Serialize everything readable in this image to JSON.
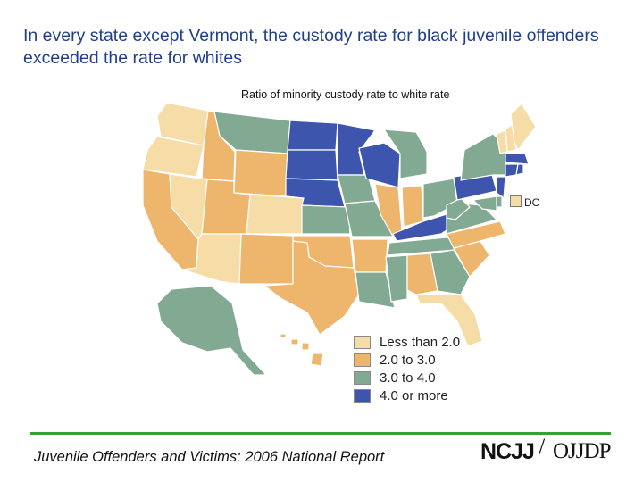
{
  "header": {
    "title": "In every state except Vermont, the custody rate for black juvenile offenders exceeded the rate for whites",
    "subtitle": "Ratio of minority custody rate to white rate"
  },
  "legend": {
    "items": [
      {
        "label": "Less than 2.0",
        "color": "#f6dca6"
      },
      {
        "label": "2.0 to 3.0",
        "color": "#eeb56c"
      },
      {
        "label": "3.0 to 4.0",
        "color": "#82a992"
      },
      {
        "label": "4.0 or more",
        "color": "#3e55ad"
      }
    ]
  },
  "dc": {
    "label": "DC",
    "category": 0
  },
  "map_data": {
    "categories": [
      "Less than 2.0",
      "2.0 to 3.0",
      "3.0 to 4.0",
      "4.0 or more"
    ],
    "states": {
      "WA": 0,
      "OR": 0,
      "CA": 1,
      "NV": 0,
      "ID": 1,
      "MT": 2,
      "WY": 1,
      "UT": 1,
      "AZ": 0,
      "CO": 0,
      "NM": 1,
      "ND": 3,
      "SD": 3,
      "NE": 3,
      "KS": 2,
      "OK": 1,
      "TX": 1,
      "MN": 3,
      "IA": 2,
      "MO": 2,
      "AR": 1,
      "LA": 2,
      "WI": 3,
      "IL": 1,
      "MI": 2,
      "IN": 1,
      "OH": 2,
      "KY": 3,
      "TN": 2,
      "MS": 2,
      "AL": 1,
      "GA": 2,
      "FL": 0,
      "SC": 1,
      "NC": 1,
      "VA": 2,
      "WV": 2,
      "PA": 3,
      "NY": 2,
      "VT": 0,
      "NH": 0,
      "ME": 0,
      "MA": 3,
      "CT": 3,
      "RI": 3,
      "NJ": 3,
      "DE": 2,
      "MD": 2,
      "AK": 2,
      "HI": 1
    }
  },
  "footer": {
    "text": "Juvenile Offenders and Victims: 2006 National Report",
    "logo_left": "NCJJ",
    "logo_slash": "/",
    "logo_right": "OJJDP"
  }
}
